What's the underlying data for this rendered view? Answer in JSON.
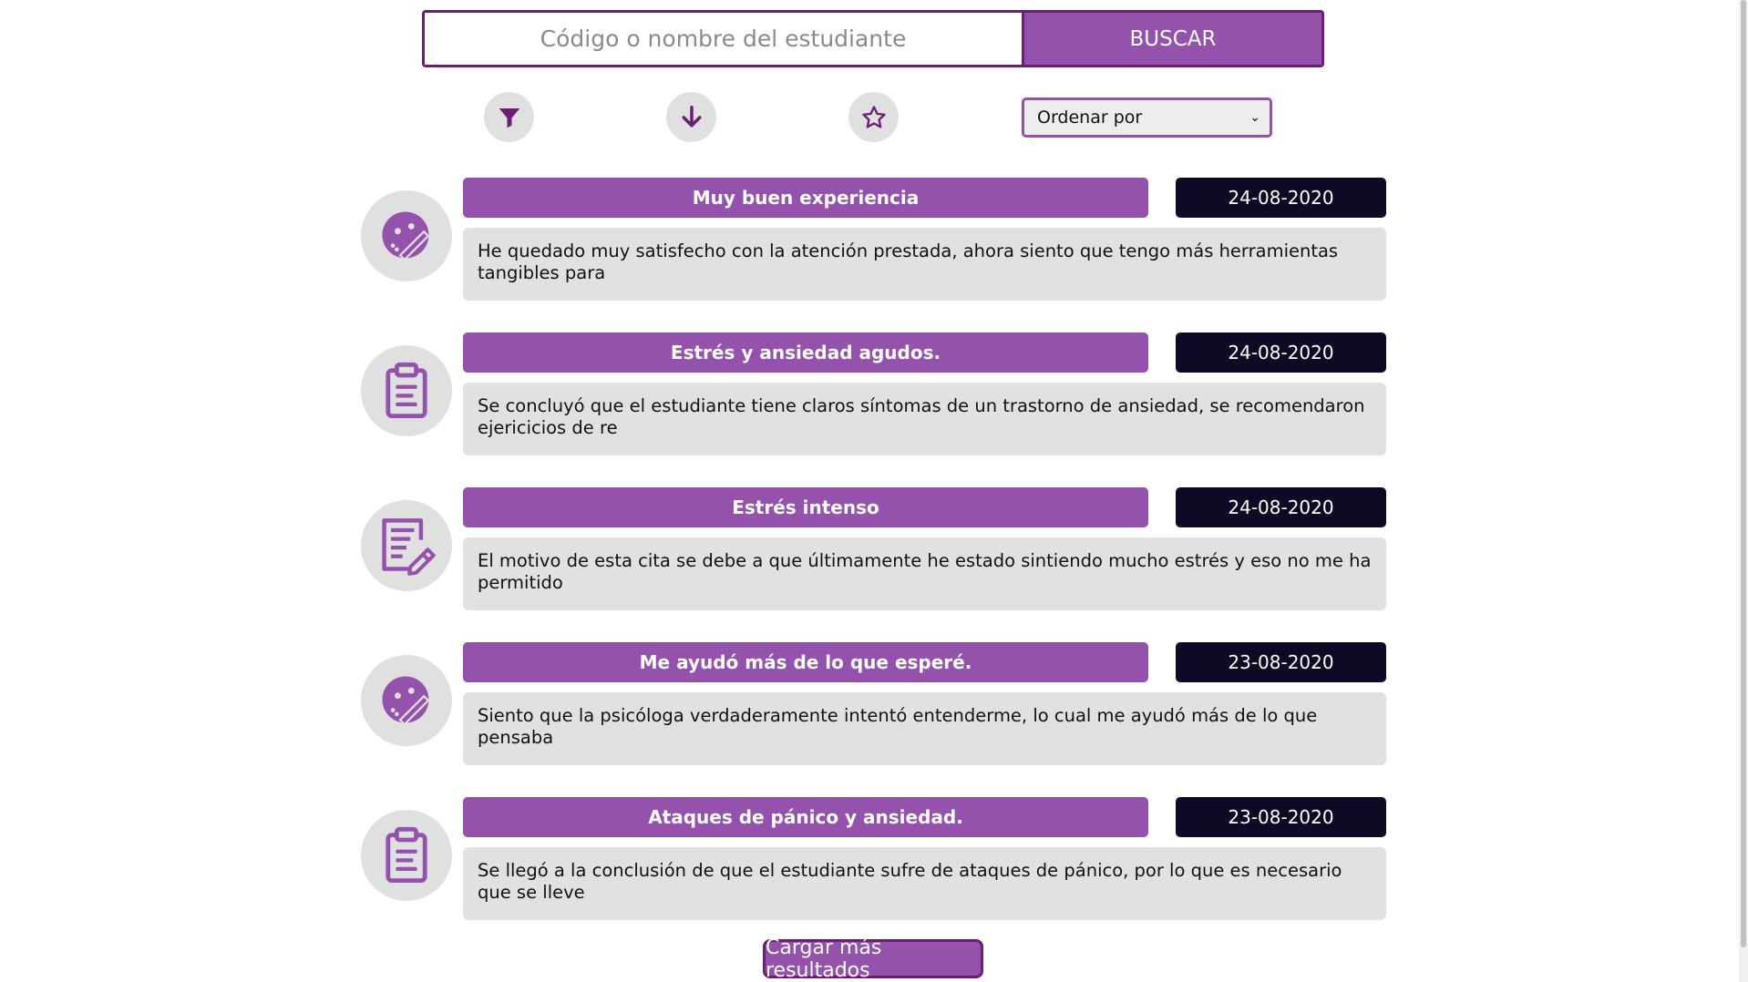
{
  "search": {
    "placeholder": "Código o nombre del estudiante",
    "value": "",
    "button_label": "BUSCAR"
  },
  "toolbar": {
    "filter_icon": "filter-icon",
    "download_icon": "arrow-down-icon",
    "favorite_icon": "star-icon",
    "sort_label": "Ordenar por"
  },
  "records": [
    {
      "icon": "face-pen-icon",
      "title": "Muy buen experiencia",
      "date": "24-08-2020",
      "body": "He quedado muy satisfecho con la atención prestada, ahora siento que tengo más herramientas tangibles para"
    },
    {
      "icon": "clipboard-icon",
      "title": "Estrés y ansiedad agudos.",
      "date": "24-08-2020",
      "body": "Se concluyó que el estudiante tiene claros síntomas de un trastorno de ansiedad, se recomendaron ejericicios de re"
    },
    {
      "icon": "document-edit-icon",
      "title": "Estrés intenso",
      "date": "24-08-2020",
      "body": "El motivo de esta cita se debe a que últimamente he estado sintiendo mucho estrés y eso no me ha permitido"
    },
    {
      "icon": "face-pen-icon",
      "title": "Me ayudó más de lo que esperé.",
      "date": "23-08-2020",
      "body": "Siento que la psicóloga verdaderamente intentó entenderme, lo cual me ayudó más de lo que pensaba"
    },
    {
      "icon": "clipboard-icon",
      "title": "Ataques de pánico y ansiedad.",
      "date": "23-08-2020",
      "body": "Se llegó a la conclusión de que el estudiante sufre de ataques de pánico, por lo que es necesario que se lleve"
    }
  ],
  "load_more_label": "Cargar más resultados",
  "colors": {
    "primary": "#9452ad",
    "primary_dark": "#6b1f73",
    "date_bg": "#0d0a26",
    "card_bg": "#e1e1e1"
  }
}
